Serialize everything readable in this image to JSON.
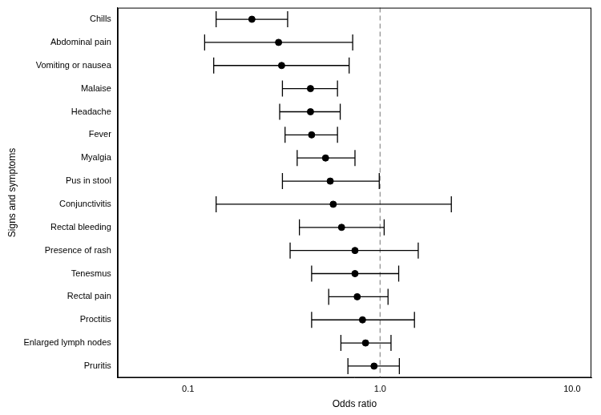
{
  "chart_data": {
    "type": "forest",
    "xlabel": "Odds ratio",
    "ylabel": "Signs and symptoms",
    "categories": [
      "Chills",
      "Abdominal pain",
      "Vomiting or nausea",
      "Malaise",
      "Headache",
      "Fever",
      "Myalgia",
      "Pus in stool",
      "Conjunctivitis",
      "Rectal bleeding",
      "Presence of rash",
      "Tenesmus",
      "Rectal pain",
      "Proctitis",
      "Enlarged lymph nodes",
      "Pruritis"
    ],
    "values": [
      0.215,
      0.296,
      0.307,
      0.434,
      0.434,
      0.44,
      0.52,
      0.55,
      0.57,
      0.63,
      0.74,
      0.74,
      0.76,
      0.81,
      0.84,
      0.93
    ],
    "ci_low": [
      0.14,
      0.122,
      0.136,
      0.31,
      0.3,
      0.32,
      0.37,
      0.31,
      0.14,
      0.38,
      0.34,
      0.44,
      0.54,
      0.44,
      0.625,
      0.68
    ],
    "ci_high": [
      0.33,
      0.72,
      0.69,
      0.6,
      0.62,
      0.6,
      0.74,
      0.99,
      2.35,
      1.05,
      1.58,
      1.25,
      1.1,
      1.51,
      1.14,
      1.26
    ],
    "reference_line": 1,
    "log": "x",
    "xlim": [
      0.043,
      12.6
    ],
    "xticks": [
      0.1,
      {
        "value": 1,
        "label": "1.0"
      },
      {
        "value": 10,
        "label": "10.0"
      }
    ],
    "color": "#000000",
    "marker": "circle",
    "grid": false
  }
}
